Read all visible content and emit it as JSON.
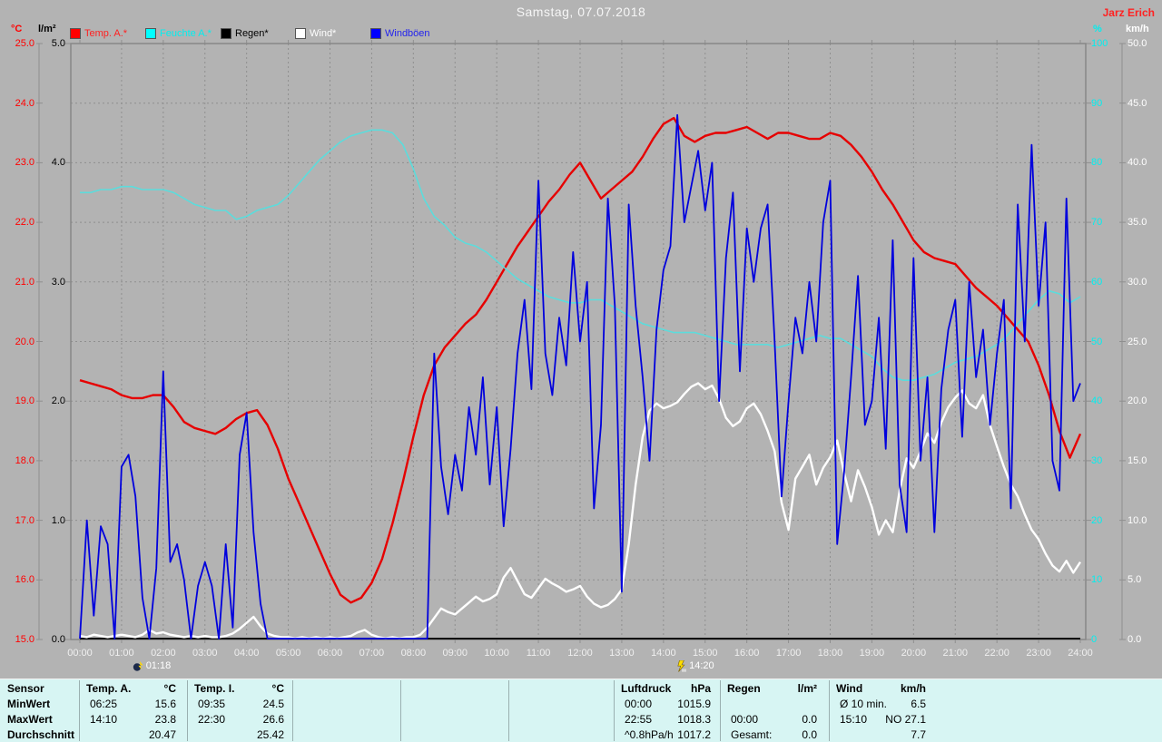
{
  "header": {
    "title": "Samstag, 07.07.2018",
    "watermark": "Jarz Erich"
  },
  "legend": [
    {
      "label": "Temp. A.*",
      "swatch": "#ff0000",
      "text_color": "#ff2020"
    },
    {
      "label": "Feuchte A.*",
      "swatch": "#00ffff",
      "text_color": "#00efef"
    },
    {
      "label": "Regen*",
      "swatch": "#000000",
      "text_color": "#000000"
    },
    {
      "label": "Wind*",
      "swatch": "#ffffff",
      "text_color": "#ffffff"
    },
    {
      "label": "Windböen",
      "swatch": "#0000ff",
      "text_color": "#2222ee"
    }
  ],
  "markers": [
    {
      "time": "01:18",
      "icon": "moon-bolt-icon"
    },
    {
      "time": "14:20",
      "icon": "lightning-icon"
    }
  ],
  "colors": {
    "page_bg": "#b3b3b3",
    "plot_border": "#878787",
    "grid": "#8f8f8f",
    "table_bg": "#d7f5f3",
    "table_divider": "#9ab0b0",
    "temp_label": "#ff0000",
    "rain_label": "#000000",
    "humidity_label": "#00efef",
    "wind_label": "#ffffff",
    "x_label": "#efefef"
  },
  "chart_data": {
    "type": "line",
    "title": "Samstag, 07.07.2018",
    "x_axis": {
      "range_hours": [
        0,
        24
      ],
      "tick_step_minutes": 60,
      "label_format": "HH:00",
      "grid": true
    },
    "axes": {
      "temp": {
        "unit": "°C",
        "range": [
          15,
          25
        ],
        "tick_step": 1,
        "decimals": 1,
        "color": "#ff0000",
        "side": "left-outer"
      },
      "rain": {
        "unit": "l/m²",
        "range": [
          0,
          5
        ],
        "tick_step": 1,
        "decimals": 1,
        "color": "#000000",
        "side": "left-inner"
      },
      "humidity": {
        "unit": "%",
        "range": [
          0,
          100
        ],
        "tick_step": 10,
        "decimals": 0,
        "color": "#00efef",
        "side": "right-inner"
      },
      "wind": {
        "unit": "km/h",
        "range": [
          0,
          50
        ],
        "tick_step": 5,
        "decimals": 1,
        "color": "#ffffff",
        "side": "right-outer"
      }
    },
    "series": [
      {
        "name": "Temp. A.",
        "axis": "temp",
        "unit": "°C",
        "color": "#e60000",
        "width": 2.4,
        "x_start_h": 0,
        "x_step_min": 15,
        "values": [
          19.35,
          19.3,
          19.25,
          19.2,
          19.1,
          19.05,
          19.05,
          19.1,
          19.1,
          18.9,
          18.65,
          18.55,
          18.5,
          18.45,
          18.55,
          18.7,
          18.8,
          18.85,
          18.6,
          18.2,
          17.7,
          17.3,
          16.9,
          16.5,
          16.1,
          15.75,
          15.62,
          15.7,
          15.95,
          16.35,
          16.95,
          17.65,
          18.4,
          19.1,
          19.6,
          19.9,
          20.1,
          20.3,
          20.45,
          20.7,
          21.0,
          21.3,
          21.6,
          21.85,
          22.1,
          22.35,
          22.55,
          22.8,
          23.0,
          22.7,
          22.4,
          22.55,
          22.7,
          22.85,
          23.1,
          23.4,
          23.65,
          23.75,
          23.45,
          23.35,
          23.45,
          23.5,
          23.5,
          23.55,
          23.6,
          23.5,
          23.4,
          23.5,
          23.5,
          23.45,
          23.4,
          23.4,
          23.5,
          23.45,
          23.3,
          23.1,
          22.85,
          22.55,
          22.3,
          22.0,
          21.7,
          21.5,
          21.4,
          21.35,
          21.3,
          21.1,
          20.9,
          20.75,
          20.6,
          20.4,
          20.2,
          20.0,
          19.6,
          19.1,
          18.5,
          18.05,
          18.45
        ]
      },
      {
        "name": "Feuchte A.",
        "axis": "humidity",
        "unit": "%",
        "color": "#5cdcdc",
        "width": 1.6,
        "x_start_h": 0,
        "x_step_min": 15,
        "values": [
          75,
          75,
          75.5,
          75.5,
          76,
          76,
          75.5,
          75.5,
          75.5,
          75,
          74,
          73,
          72.5,
          72,
          72,
          70.5,
          71,
          72,
          72.5,
          73,
          74.5,
          76.5,
          78.5,
          80.5,
          82,
          83.5,
          84.5,
          85,
          85.5,
          85.5,
          85,
          83,
          79,
          74,
          71,
          69.5,
          67.5,
          66.5,
          66,
          65,
          63.5,
          62,
          60.5,
          59.5,
          58.5,
          57.5,
          57,
          56.5,
          56.5,
          57,
          57,
          56,
          55,
          54,
          53,
          52.5,
          52,
          51.5,
          51.5,
          51.5,
          51,
          50.5,
          50,
          49.5,
          49.5,
          49.5,
          49.5,
          49,
          49.5,
          50,
          50.5,
          51,
          50.5,
          50.5,
          49.5,
          48.5,
          47.5,
          45.5,
          44,
          43.5,
          43.5,
          44,
          44.5,
          45.5,
          46.5,
          47,
          47.5,
          48.5,
          49.5,
          51,
          53,
          55,
          57,
          58.5,
          58,
          56.5,
          57.5
        ]
      },
      {
        "name": "Regen",
        "axis": "rain",
        "unit": "l/m²",
        "color": "#111111",
        "width": 2,
        "x_start_h": 0,
        "x_step_min": 1440,
        "values": [
          0,
          0
        ]
      },
      {
        "name": "Wind",
        "axis": "wind",
        "unit": "km/h",
        "color": "#ffffff",
        "width": 2.4,
        "x_start_h": 0,
        "x_step_min": 10,
        "values": [
          0.3,
          0.2,
          0.4,
          0.3,
          0.2,
          0.3,
          0.4,
          0.3,
          0.2,
          0.4,
          0.8,
          0.5,
          0.6,
          0.4,
          0.3,
          0.2,
          0.3,
          0.2,
          0.3,
          0.2,
          0.2,
          0.3,
          0.5,
          0.9,
          1.4,
          1.9,
          1.1,
          0.5,
          0.3,
          0.2,
          0.2,
          0.1,
          0.2,
          0.1,
          0.2,
          0.1,
          0.2,
          0.1,
          0.2,
          0.3,
          0.6,
          0.8,
          0.4,
          0.2,
          0.1,
          0.2,
          0.1,
          0.2,
          0.2,
          0.4,
          1.0,
          1.8,
          2.6,
          2.3,
          2.1,
          2.6,
          3.1,
          3.6,
          3.2,
          3.4,
          3.8,
          5.2,
          6.0,
          4.9,
          3.8,
          3.5,
          4.3,
          5.1,
          4.7,
          4.4,
          4.0,
          4.2,
          4.5,
          3.6,
          3.0,
          2.7,
          2.9,
          3.4,
          4.2,
          8.0,
          13.0,
          17.0,
          19.2,
          19.8,
          19.4,
          19.6,
          19.9,
          20.6,
          21.2,
          21.5,
          21.0,
          21.3,
          20.2,
          18.6,
          17.9,
          18.3,
          19.4,
          19.8,
          18.9,
          17.5,
          15.8,
          11.5,
          9.2,
          13.5,
          14.5,
          15.5,
          13.0,
          14.4,
          15.3,
          16.7,
          14.0,
          11.6,
          14.2,
          12.8,
          11.1,
          8.8,
          10.0,
          9.0,
          12.5,
          15.2,
          14.4,
          15.8,
          17.3,
          16.5,
          18.2,
          19.5,
          20.3,
          20.9,
          19.8,
          19.4,
          20.5,
          18.0,
          16.2,
          14.5,
          13.0,
          12.0,
          10.5,
          9.2,
          8.4,
          7.2,
          6.2,
          5.7,
          6.6,
          5.6,
          6.5
        ]
      },
      {
        "name": "Windböen",
        "axis": "wind",
        "unit": "km/h",
        "color": "#0000dd",
        "width": 1.8,
        "x_start_h": 0,
        "x_step_min": 10,
        "values": [
          0,
          10,
          2,
          9.5,
          8,
          0,
          14.5,
          15.5,
          12,
          3.5,
          0,
          6,
          22.5,
          6.5,
          8,
          5,
          0,
          4.5,
          6.5,
          4.5,
          0,
          8,
          1,
          15.5,
          19,
          9,
          3,
          0,
          0,
          0,
          0,
          0,
          0,
          0,
          0,
          0,
          0,
          0,
          0,
          0,
          0,
          0,
          0,
          0,
          0,
          0,
          0,
          0,
          0,
          0,
          0,
          24,
          14.5,
          10.5,
          15.5,
          12.5,
          19.5,
          15.5,
          22,
          13,
          19.5,
          9.5,
          16,
          24,
          28.5,
          21,
          38.5,
          24,
          20.5,
          27,
          23,
          32.5,
          25,
          30,
          11,
          18,
          37,
          28,
          4,
          36.5,
          28,
          22,
          15,
          26,
          31,
          33,
          44,
          35,
          38,
          41,
          36,
          40,
          20,
          32,
          37.5,
          22.5,
          34.5,
          30,
          34.5,
          36.5,
          25,
          12,
          20,
          27,
          24,
          30,
          25,
          35,
          38.5,
          8,
          14,
          22,
          30.5,
          18,
          20,
          27,
          16,
          33.5,
          13,
          9,
          32,
          15,
          22,
          9,
          21,
          26,
          28.5,
          17,
          30,
          22,
          26,
          18,
          24,
          28.5,
          11,
          36.5,
          25,
          41.5,
          28,
          35,
          15,
          12.5,
          37,
          20,
          21.5
        ]
      }
    ],
    "event_markers": [
      {
        "time": "01:18"
      },
      {
        "time": "14:20"
      }
    ]
  },
  "table": {
    "row_labels": [
      "Sensor",
      "MinWert",
      "MaxWert",
      "Durchschnitt"
    ],
    "columns": [
      {
        "name": "Temp. A.",
        "unit": "°C",
        "rows": [
          [
            "06:25",
            "15.6"
          ],
          [
            "14:10",
            "23.8"
          ],
          [
            "",
            "20.47"
          ]
        ]
      },
      {
        "name": "Temp. I.",
        "unit": "°C",
        "rows": [
          [
            "09:35",
            "24.5"
          ],
          [
            "22:30",
            "26.6"
          ],
          [
            "",
            "25.42"
          ]
        ]
      },
      {
        "name": "",
        "unit": "",
        "rows": [
          [
            "",
            ""
          ],
          [
            "",
            ""
          ],
          [
            "",
            ""
          ]
        ]
      },
      {
        "name": "",
        "unit": "",
        "rows": [
          [
            "",
            ""
          ],
          [
            "",
            ""
          ],
          [
            "",
            ""
          ]
        ]
      },
      {
        "name": "",
        "unit": "",
        "rows": [
          [
            "",
            ""
          ],
          [
            "",
            ""
          ],
          [
            "",
            ""
          ]
        ]
      },
      {
        "name": "Luftdruck",
        "unit": "hPa",
        "rows": [
          [
            "00:00",
            "1015.9"
          ],
          [
            "22:55",
            "1018.3"
          ],
          [
            "^0.8hPa/h",
            "1017.2"
          ]
        ]
      },
      {
        "name": "Regen",
        "unit": "l/m²",
        "rows": [
          [
            "",
            ""
          ],
          [
            "00:00",
            "0.0"
          ],
          [
            "Gesamt:",
            "0.0"
          ]
        ]
      },
      {
        "name": "Wind",
        "unit": "km/h",
        "rows": [
          [
            "Ø 10 min.",
            "6.5"
          ],
          [
            "15:10",
            "NO 27.1"
          ],
          [
            "",
            "7.7"
          ]
        ]
      }
    ]
  }
}
